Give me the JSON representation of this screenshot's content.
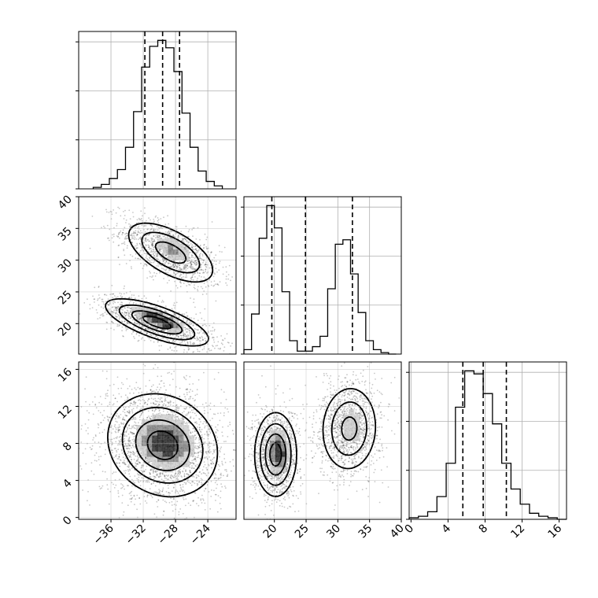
{
  "chart_data": {
    "type": "corner",
    "title": "",
    "parameters": [
      {
        "name": "",
        "range": [
          -40,
          -20.5
        ],
        "quantiles": [
          -31.8,
          -29.6,
          -27.5
        ],
        "ticks": [
          -36,
          -32,
          -28,
          -24
        ],
        "tick_labels": [
          "−36",
          "−32",
          "−28",
          "−24"
        ]
      },
      {
        "name": "",
        "range": [
          15.2,
          40
        ],
        "quantiles": [
          19.6,
          24.9,
          32.3
        ],
        "ticks": [
          20,
          25,
          30,
          35,
          40
        ],
        "tick_labels": [
          "20",
          "25",
          "30",
          "35",
          "40"
        ]
      },
      {
        "name": "",
        "range": [
          -0.2,
          16.8
        ],
        "quantiles": [
          5.6,
          7.8,
          10.3
        ],
        "ticks": [
          0,
          4,
          8,
          12,
          16
        ],
        "tick_labels": [
          "0",
          "4",
          "8",
          "12",
          "16"
        ]
      }
    ],
    "histograms": [
      {
        "param": 0,
        "bin_edges": [
          -38.2,
          -37.2,
          -36.2,
          -35.2,
          -34.2,
          -33.2,
          -32.2,
          -31.2,
          -30.2,
          -29.2,
          -28.2,
          -27.2,
          -26.2,
          -25.2,
          -24.2,
          -23.2,
          -22.2
        ],
        "counts": [
          0.01,
          0.03,
          0.07,
          0.13,
          0.28,
          0.52,
          0.82,
          0.96,
          1.0,
          0.95,
          0.79,
          0.51,
          0.28,
          0.12,
          0.05,
          0.02
        ]
      },
      {
        "param": 1,
        "bin_edges": [
          15.2,
          16.4,
          17.6,
          18.8,
          20.0,
          21.2,
          22.4,
          23.6,
          24.8,
          26.0,
          27.2,
          28.4,
          29.6,
          30.8,
          32.0,
          33.2,
          34.4,
          35.6,
          36.8,
          38.0,
          39.2
        ],
        "counts": [
          0.03,
          0.27,
          0.78,
          1.0,
          0.85,
          0.42,
          0.09,
          0.02,
          0.02,
          0.05,
          0.12,
          0.44,
          0.74,
          0.77,
          0.54,
          0.28,
          0.09,
          0.03,
          0.01,
          0.0
        ]
      },
      {
        "param": 2,
        "bin_edges": [
          -0.2,
          0.8,
          1.8,
          2.8,
          3.8,
          4.8,
          5.8,
          6.8,
          7.8,
          8.8,
          9.8,
          10.8,
          11.8,
          12.8,
          13.8,
          14.8,
          15.8,
          16.8
        ],
        "counts": [
          0.01,
          0.02,
          0.05,
          0.15,
          0.37,
          0.74,
          0.98,
          0.96,
          0.83,
          0.63,
          0.37,
          0.2,
          0.1,
          0.04,
          0.02,
          0.01,
          0.0
        ]
      }
    ],
    "contours": [
      {
        "x_param": 0,
        "y_param": 1,
        "components": [
          {
            "mean": [
              -28.6,
              31.2
            ],
            "sx": 2.7,
            "sy": 2.4,
            "rho": -0.6,
            "w": 0.5
          },
          {
            "mean": [
              -30.3,
              20.2
            ],
            "sx": 3.1,
            "sy": 1.8,
            "rho": -0.7,
            "w": 0.5
          }
        ]
      },
      {
        "x_param": 0,
        "y_param": 2,
        "components": [
          {
            "mean": [
              -29.6,
              7.8
            ],
            "sx": 3.3,
            "sy": 2.7,
            "rho": -0.15,
            "w": 1.0
          }
        ]
      },
      {
        "x_param": 1,
        "y_param": 2,
        "components": [
          {
            "mean": [
              20.2,
              6.8
            ],
            "sx": 1.6,
            "sy": 2.2,
            "rho": 0.0,
            "w": 0.5
          },
          {
            "mean": [
              31.8,
              9.6
            ],
            "sx": 2.2,
            "sy": 2.3,
            "rho": 0.05,
            "w": 0.5
          }
        ]
      }
    ],
    "contour_levels": 4,
    "grid": true,
    "legend": "none"
  }
}
